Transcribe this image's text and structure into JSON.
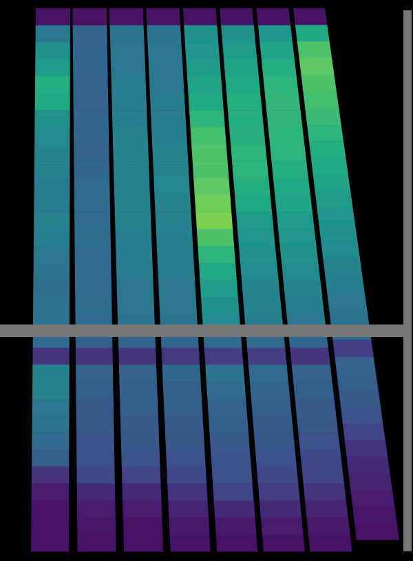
{
  "chart_data": {
    "type": "heatmap",
    "color": "viridis",
    "tick_labels": false,
    "color_range": [
      0,
      1
    ],
    "cells": [
      [
        0.05,
        0.4,
        0.5,
        0.55,
        0.62,
        0.6,
        0.5,
        0.48,
        0.45,
        0.45,
        0.42,
        0.42,
        0.45,
        0.43,
        0.4,
        0.38,
        0.36,
        0.38,
        0.38,
        0.35,
        0.15,
        0.45,
        0.45,
        0.4,
        0.38,
        0.35,
        0.3,
        0.15,
        0.08,
        0.05,
        0.05,
        0.05
      ],
      [
        0.05,
        0.32,
        0.33,
        0.33,
        0.32,
        0.32,
        0.33,
        0.33,
        0.32,
        0.33,
        0.35,
        0.35,
        0.35,
        0.36,
        0.35,
        0.35,
        0.35,
        0.36,
        0.35,
        0.3,
        0.15,
        0.32,
        0.3,
        0.28,
        0.28,
        0.26,
        0.25,
        0.22,
        0.12,
        0.08,
        0.06,
        0.05
      ],
      [
        0.05,
        0.38,
        0.4,
        0.4,
        0.42,
        0.42,
        0.43,
        0.45,
        0.45,
        0.45,
        0.45,
        0.45,
        0.45,
        0.43,
        0.42,
        0.42,
        0.4,
        0.4,
        0.38,
        0.32,
        0.15,
        0.32,
        0.3,
        0.3,
        0.28,
        0.27,
        0.25,
        0.2,
        0.12,
        0.08,
        0.05,
        0.05
      ],
      [
        0.05,
        0.38,
        0.4,
        0.4,
        0.4,
        0.42,
        0.42,
        0.43,
        0.45,
        0.45,
        0.46,
        0.45,
        0.45,
        0.43,
        0.42,
        0.42,
        0.4,
        0.4,
        0.38,
        0.33,
        0.16,
        0.33,
        0.3,
        0.3,
        0.28,
        0.27,
        0.25,
        0.22,
        0.15,
        0.1,
        0.07,
        0.05
      ],
      [
        0.05,
        0.5,
        0.52,
        0.55,
        0.58,
        0.6,
        0.65,
        0.7,
        0.72,
        0.72,
        0.75,
        0.78,
        0.8,
        0.72,
        0.65,
        0.6,
        0.55,
        0.5,
        0.48,
        0.35,
        0.18,
        0.38,
        0.35,
        0.32,
        0.3,
        0.28,
        0.26,
        0.25,
        0.2,
        0.12,
        0.07,
        0.05
      ],
      [
        0.05,
        0.5,
        0.55,
        0.58,
        0.6,
        0.62,
        0.62,
        0.63,
        0.65,
        0.65,
        0.62,
        0.6,
        0.55,
        0.52,
        0.5,
        0.48,
        0.45,
        0.45,
        0.42,
        0.35,
        0.18,
        0.35,
        0.33,
        0.3,
        0.28,
        0.27,
        0.25,
        0.22,
        0.18,
        0.12,
        0.08,
        0.05
      ],
      [
        0.05,
        0.52,
        0.58,
        0.62,
        0.65,
        0.66,
        0.66,
        0.65,
        0.65,
        0.62,
        0.6,
        0.58,
        0.55,
        0.52,
        0.5,
        0.48,
        0.45,
        0.43,
        0.4,
        0.33,
        0.15,
        0.32,
        0.3,
        0.28,
        0.27,
        0.25,
        0.22,
        0.2,
        0.15,
        0.1,
        0.07,
        0.05
      ],
      [
        0.05,
        0.6,
        0.72,
        0.75,
        0.72,
        0.7,
        0.68,
        0.65,
        0.62,
        0.6,
        0.58,
        0.55,
        0.52,
        0.5,
        0.48,
        0.45,
        0.43,
        0.4,
        0.38,
        0.33,
        0.18,
        0.32,
        0.3,
        0.28,
        0.25,
        0.2,
        0.15,
        0.12,
        0.1,
        0.08,
        0.06,
        0.05
      ]
    ]
  }
}
